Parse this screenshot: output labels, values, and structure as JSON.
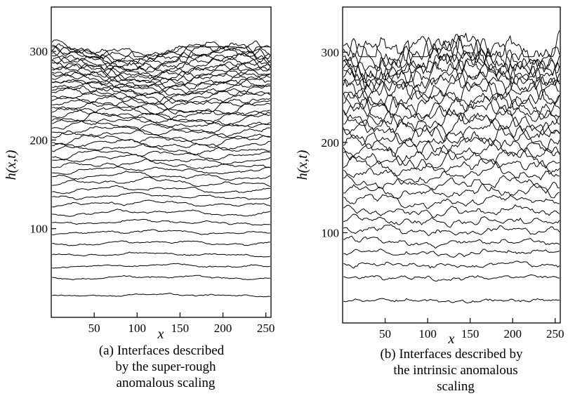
{
  "chart_data": [
    {
      "id": "a",
      "type": "line",
      "xlabel": "x",
      "ylabel": "h(x,t)",
      "xlim": [
        0,
        256
      ],
      "ylim": [
        0,
        350
      ],
      "xticks": [
        50,
        100,
        150,
        200,
        250
      ],
      "yticks": [
        100,
        200,
        300
      ],
      "caption_lines": [
        "(a) Interfaces described",
        "by the super-rough",
        "anomalous scaling"
      ],
      "interfaces": {
        "count": 50,
        "mean_heights": [
          25,
          45,
          58,
          71,
          84,
          96,
          107,
          118,
          128,
          136,
          144,
          152,
          159,
          166,
          172,
          178,
          184,
          190,
          195,
          200,
          205,
          210,
          215,
          219,
          223,
          227,
          231,
          235,
          239,
          243,
          247,
          251,
          254,
          257,
          260,
          263,
          266,
          269,
          272,
          275,
          278,
          281,
          284,
          287,
          290,
          293,
          296,
          298,
          300,
          302
        ],
        "roughness_range": [
          2,
          14
        ],
        "top_profile_range": [
          294,
          305
        ]
      }
    },
    {
      "id": "b",
      "type": "line",
      "xlabel": "x",
      "ylabel": "h(x,t)",
      "xlim": [
        0,
        256
      ],
      "ylim": [
        0,
        350
      ],
      "xticks": [
        50,
        100,
        150,
        200,
        250
      ],
      "yticks": [
        100,
        200,
        300
      ],
      "caption_lines": [
        "(b) Interfaces described by",
        "the intrinsic anomalous",
        "scaling"
      ],
      "interfaces": {
        "count": 34,
        "mean_heights": [
          25,
          50,
          64,
          78,
          90,
          102,
          113,
          124,
          135,
          145,
          155,
          164,
          173,
          181,
          189,
          197,
          205,
          212,
          219,
          226,
          233,
          240,
          246,
          252,
          258,
          264,
          270,
          276,
          281,
          286,
          291,
          296,
          300,
          305
        ],
        "roughness_range": [
          2,
          20
        ],
        "top_profile_range": [
          295,
          330
        ]
      }
    }
  ]
}
